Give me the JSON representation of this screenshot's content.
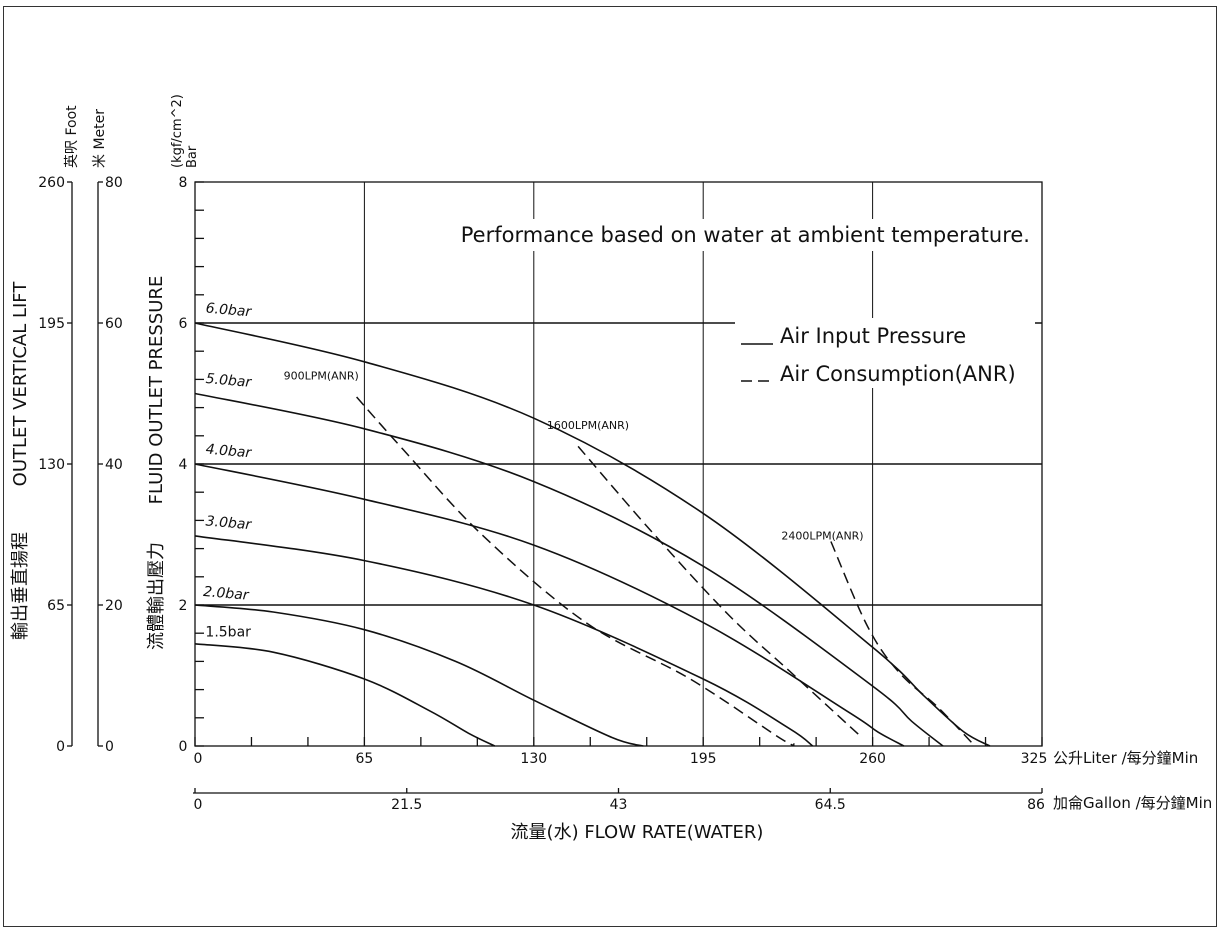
{
  "chart_data": {
    "type": "line",
    "note": "Performance based on water at ambient temperature.",
    "xlabel": "流量(水) FLOW RATE(WATER)",
    "x_primary": {
      "unit_label": "公升Liter /每分鐘Min",
      "range": [
        0,
        325
      ],
      "tick_labels": [
        "0",
        "65",
        "130",
        "195",
        "260",
        "325"
      ],
      "tick_values": [
        0,
        65,
        130,
        195,
        260,
        325
      ]
    },
    "x_secondary": {
      "unit_label": "加侖Gallon /每分鐘Min",
      "range": [
        0,
        86
      ],
      "tick_labels": [
        "0",
        "21.5",
        "43",
        "64.5",
        "86"
      ],
      "tick_values": [
        0,
        21.5,
        43,
        64.5,
        86
      ]
    },
    "y_pressure": {
      "label_en": "FLUID OUTLET PRESSURE",
      "label_zh": "流體輸出壓力",
      "unit_line1": "(kgf/cm^2)",
      "unit_line2": "Bar",
      "range": [
        0,
        8
      ],
      "tick_labels": [
        "0",
        "2",
        "4",
        "6",
        "8"
      ],
      "tick_values": [
        0,
        2,
        4,
        6,
        8
      ]
    },
    "y_lift": {
      "label_en": "OUTLET VERTICAL LIFT",
      "label_zh": "輸出垂直揚程",
      "foot_unit": "英呎 Foot",
      "meter_unit": "米 Meter",
      "foot_ticks": [
        "0",
        "65",
        "130",
        "195",
        "260"
      ],
      "meter_ticks": [
        "0",
        "20",
        "40",
        "60",
        "80"
      ]
    },
    "legend": {
      "solid": "Air Input Pressure",
      "dashed": "Air Consumption(ANR)",
      "placement": "upper-right"
    },
    "series": [
      {
        "name": "6.0bar",
        "style": "solid",
        "x": [
          0,
          65,
          130,
          195,
          260,
          280,
          295,
          305
        ],
        "y": [
          6.0,
          5.45,
          4.65,
          3.3,
          1.4,
          0.7,
          0.2,
          0
        ]
      },
      {
        "name": "5.0bar",
        "style": "solid",
        "x": [
          0,
          65,
          130,
          195,
          260,
          275,
          287
        ],
        "y": [
          5.0,
          4.5,
          3.75,
          2.55,
          0.85,
          0.35,
          0
        ]
      },
      {
        "name": "4.0bar",
        "style": "solid",
        "x": [
          0,
          65,
          130,
          195,
          250,
          262,
          272
        ],
        "y": [
          4.0,
          3.5,
          2.85,
          1.75,
          0.5,
          0.2,
          0
        ]
      },
      {
        "name": "3.0bar",
        "style": "solid",
        "x": [
          0,
          65,
          130,
          195,
          228,
          237
        ],
        "y": [
          2.98,
          2.63,
          2.0,
          0.95,
          0.25,
          0
        ]
      },
      {
        "name": "2.0bar",
        "style": "solid",
        "x": [
          0,
          30,
          65,
          100,
          130,
          160,
          172
        ],
        "y": [
          2.0,
          1.9,
          1.65,
          1.2,
          0.65,
          0.12,
          0
        ]
      },
      {
        "name": "1.5bar",
        "style": "solid",
        "x": [
          0,
          30,
          65,
          90,
          105,
          115
        ],
        "y": [
          1.45,
          1.33,
          0.95,
          0.5,
          0.18,
          0
        ]
      },
      {
        "name": "900LPM(ANR)",
        "style": "dashed",
        "x": [
          62,
          80,
          110,
          150,
          190,
          225,
          230
        ],
        "y": [
          4.95,
          4.2,
          3.0,
          1.75,
          0.95,
          0.1,
          0.03
        ]
      },
      {
        "name": "1600LPM(ANR)",
        "style": "dashed",
        "x": [
          147,
          175,
          205,
          230,
          255
        ],
        "y": [
          4.25,
          3.05,
          1.85,
          1.0,
          0.15
        ]
      },
      {
        "name": "2400LPM(ANR)",
        "style": "dashed",
        "x": [
          244,
          258,
          270,
          285,
          298
        ],
        "y": [
          2.9,
          1.7,
          1.05,
          0.55,
          0.05
        ]
      }
    ],
    "annotations": [
      {
        "text": "6.0bar",
        "x": 4,
        "y": 6.15
      },
      {
        "text": "5.0bar",
        "x": 4,
        "y": 5.15
      },
      {
        "text": "4.0bar",
        "x": 4,
        "y": 4.15
      },
      {
        "text": "3.0bar",
        "x": 4,
        "y": 3.13
      },
      {
        "text": "2.0bar",
        "x": 3,
        "y": 2.13
      },
      {
        "text": "1.5bar",
        "x": 4,
        "y": 1.55
      },
      {
        "text": "900LPM(ANR)",
        "x": 34,
        "y": 5.2
      },
      {
        "text": "1600LPM(ANR)",
        "x": 135,
        "y": 4.5
      },
      {
        "text": "2400LPM(ANR)",
        "x": 225,
        "y": 2.93
      }
    ],
    "grid": true
  }
}
